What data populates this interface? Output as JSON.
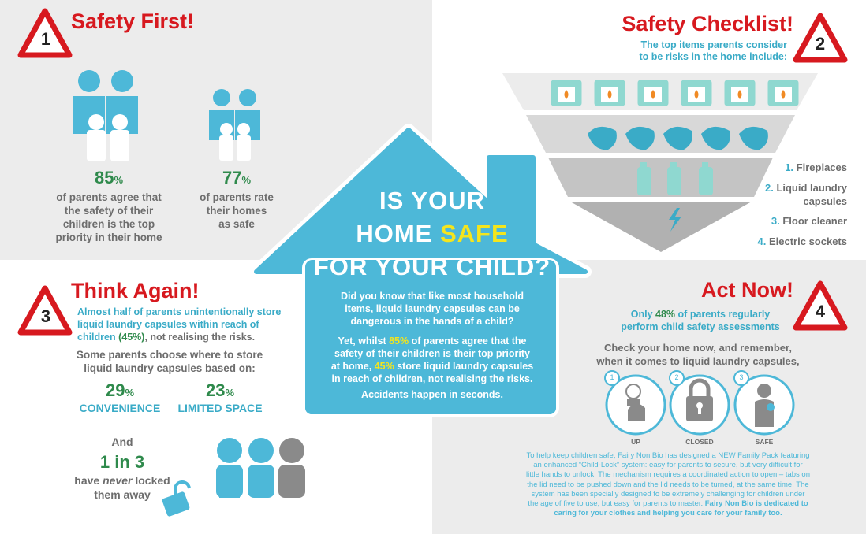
{
  "section1": {
    "number": "1",
    "heading": "Safety First!",
    "stat1": {
      "value": "85",
      "unit": "%",
      "lines": [
        "of parents agree that",
        "the safety of their",
        "children is the top",
        "priority in their home"
      ]
    },
    "stat2": {
      "value": "77",
      "unit": "%",
      "lines": [
        "of parents rate",
        "their homes",
        "as safe"
      ]
    }
  },
  "section2": {
    "number": "2",
    "heading": "Safety Checklist!",
    "intro": [
      "The top items parents consider",
      "to be risks in the home include:"
    ],
    "items": [
      {
        "n": "1.",
        "text": "Fireplaces"
      },
      {
        "n": "2.",
        "text": "Liquid laundry",
        "text2": "capsules"
      },
      {
        "n": "3.",
        "text": "Floor cleaner"
      },
      {
        "n": "4.",
        "text": "Electric sockets"
      }
    ]
  },
  "center": {
    "title": {
      "line1": "IS YOUR",
      "line2a": "HOME",
      "line2b": "SAFE",
      "line3": "FOR YOUR CHILD?"
    },
    "para1": [
      "Did you know that like most household",
      "items, liquid laundry capsules can be",
      "dangerous in the hands of a child?"
    ],
    "para2": {
      "l1a": "Yet, whilst",
      "l1b": "85%",
      "l1c": "of parents agree that the",
      "l2": "safety of their children is their top priority",
      "l3a": "at home,",
      "l3b": "45%",
      "l3c": "store liquid laundry capsules",
      "l4": "in reach of children, not realising the risks."
    },
    "para3": "Accidents happen in seconds."
  },
  "section3": {
    "number": "3",
    "heading": "Think Again!",
    "intro": {
      "l1": "Almost half of parents unintentionally store",
      "l2": "liquid laundry capsules within reach of",
      "l3a": "children",
      "l3b": "(45%)",
      "l3c": ", not realising the risks."
    },
    "sub": [
      "Some parents choose where to store",
      "liquid laundry capsules based on:"
    ],
    "stat1": {
      "value": "29",
      "unit": "%",
      "label": "CONVENIENCE"
    },
    "stat2": {
      "value": "23",
      "unit": "%",
      "label": "LIMITED SPACE"
    },
    "and": "And",
    "ratio": "1 in 3",
    "never": {
      "a": "have",
      "b": "never",
      "c": "locked"
    },
    "away": "them away"
  },
  "section4": {
    "number": "4",
    "heading": "Act Now!",
    "intro": {
      "l1a": "Only",
      "l1b": "48%",
      "l1c": "of parents regularly",
      "l2": "perform child safety assessments"
    },
    "check": [
      "Check your home now, and remember,",
      "when it comes to liquid laundry capsules,"
    ],
    "steps": [
      {
        "n": "1",
        "label": "UP"
      },
      {
        "n": "2",
        "label": "CLOSED"
      },
      {
        "n": "3",
        "label": "SAFE"
      }
    ],
    "body": [
      "To help keep children safe, Fairy Non Bio has designed a NEW Family Pack featuring",
      "an enhanced “Child-Lock” system: easy for parents to secure, but very difficult for",
      "little hands to unlock. The mechanism requires a coordinated action to open – tabs on",
      "the lid need to be pushed down and the lid needs to be turned, at the same time. The",
      "system has been specially designed to be extremely challenging for children under"
    ],
    "body6a": "the age of five to use, but easy for parents to master.",
    "body6b": "Fairy Non Bio is dedicated to",
    "body7": "caring for your clothes and helping you care for your family too."
  },
  "colors": {
    "red": "#d7191f",
    "teal": "#3aabc7",
    "green": "#2f8a4c",
    "grey": "#6d6d6d",
    "panel": "#ececec",
    "yellow": "#f4e51d"
  }
}
